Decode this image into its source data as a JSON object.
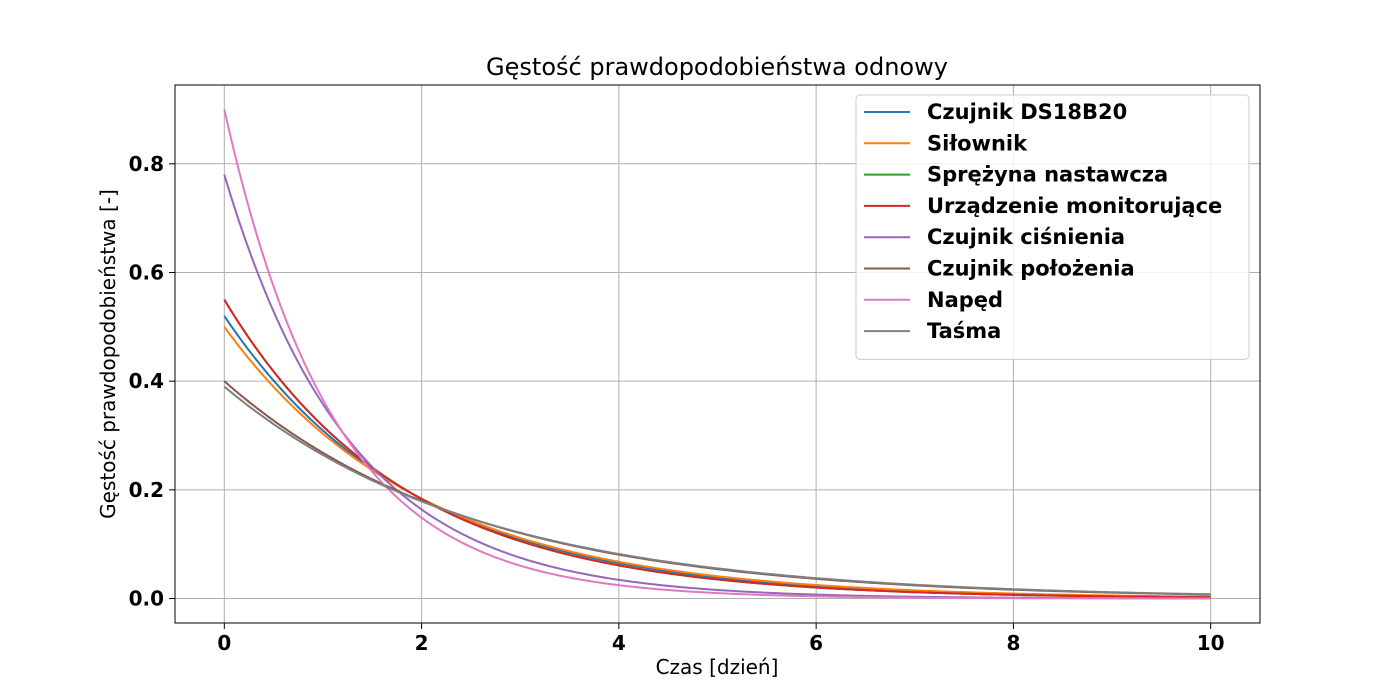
{
  "chart_data": {
    "type": "line",
    "title": "Gęstość prawdopodobieństwa odnowy",
    "xlabel": "Czas [dzień]",
    "ylabel": "Gęstość prawdopodobieństwa [-]",
    "xlim": [
      -0.5,
      10.5
    ],
    "ylim": [
      -0.045,
      0.945
    ],
    "xticks": [
      0,
      2,
      4,
      6,
      8,
      10
    ],
    "xtick_labels": [
      "0",
      "2",
      "4",
      "6",
      "8",
      "10"
    ],
    "yticks": [
      0.0,
      0.2,
      0.4,
      0.6,
      0.8
    ],
    "ytick_labels": [
      "0.0",
      "0.2",
      "0.4",
      "0.6",
      "0.8"
    ],
    "grid": true,
    "legend_position": "top-right",
    "function": "rate * exp(-rate * t)",
    "x_range": [
      0,
      10
    ],
    "series": [
      {
        "name": "Czujnik DS18B20",
        "rate": 0.52,
        "color": "#1f77b4"
      },
      {
        "name": "Siłownik",
        "rate": 0.5,
        "color": "#ff7f0e"
      },
      {
        "name": "Sprężyna nastawcza",
        "rate": 0.55,
        "color": "#2ca02c"
      },
      {
        "name": "Urządzenie monitorujące",
        "rate": 0.55,
        "color": "#d62728"
      },
      {
        "name": "Czujnik ciśnienia",
        "rate": 0.78,
        "color": "#9467bd"
      },
      {
        "name": "Czujnik położenia",
        "rate": 0.4,
        "color": "#8c564b"
      },
      {
        "name": "Napęd",
        "rate": 0.9,
        "color": "#e377c2"
      },
      {
        "name": "Taśma",
        "rate": 0.39,
        "color": "#7f7f7f"
      }
    ]
  }
}
